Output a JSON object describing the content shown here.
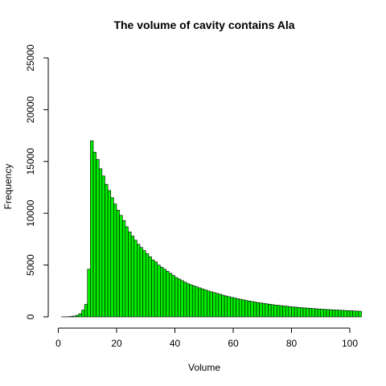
{
  "chart_data": {
    "type": "bar",
    "subtype": "histogram",
    "title": "The volume of cavity contains Ala",
    "xlabel": "Volume",
    "ylabel": "Frequency",
    "xlim": [
      0,
      105
    ],
    "ylim": [
      0,
      25000
    ],
    "x_ticks": [
      0,
      20,
      40,
      60,
      80,
      100
    ],
    "y_ticks": [
      0,
      5000,
      10000,
      15000,
      20000,
      25000
    ],
    "bin_start": 1,
    "bin_width": 1,
    "values": [
      5,
      10,
      20,
      40,
      80,
      150,
      300,
      650,
      1200,
      4600,
      17000,
      15900,
      15200,
      14300,
      13600,
      12800,
      12200,
      11500,
      10900,
      10300,
      9800,
      9300,
      8700,
      8200,
      7800,
      7400,
      7000,
      6700,
      6400,
      6100,
      5800,
      5500,
      5300,
      5000,
      4800,
      4600,
      4400,
      4200,
      4000,
      3800,
      3650,
      3500,
      3350,
      3200,
      3100,
      3000,
      2900,
      2800,
      2700,
      2600,
      2500,
      2420,
      2340,
      2260,
      2180,
      2100,
      2020,
      1950,
      1880,
      1820,
      1760,
      1700,
      1640,
      1580,
      1530,
      1480,
      1430,
      1380,
      1340,
      1300,
      1260,
      1220,
      1180,
      1140,
      1110,
      1080,
      1050,
      1020,
      990,
      960,
      935,
      910,
      885,
      860,
      840,
      820,
      800,
      780,
      760,
      740,
      720,
      705,
      690,
      675,
      660,
      645,
      630,
      615,
      600,
      585,
      570,
      555,
      540
    ],
    "bar_color": "#00ee00",
    "bar_border": "#000000",
    "grid": false,
    "legend": "none"
  }
}
